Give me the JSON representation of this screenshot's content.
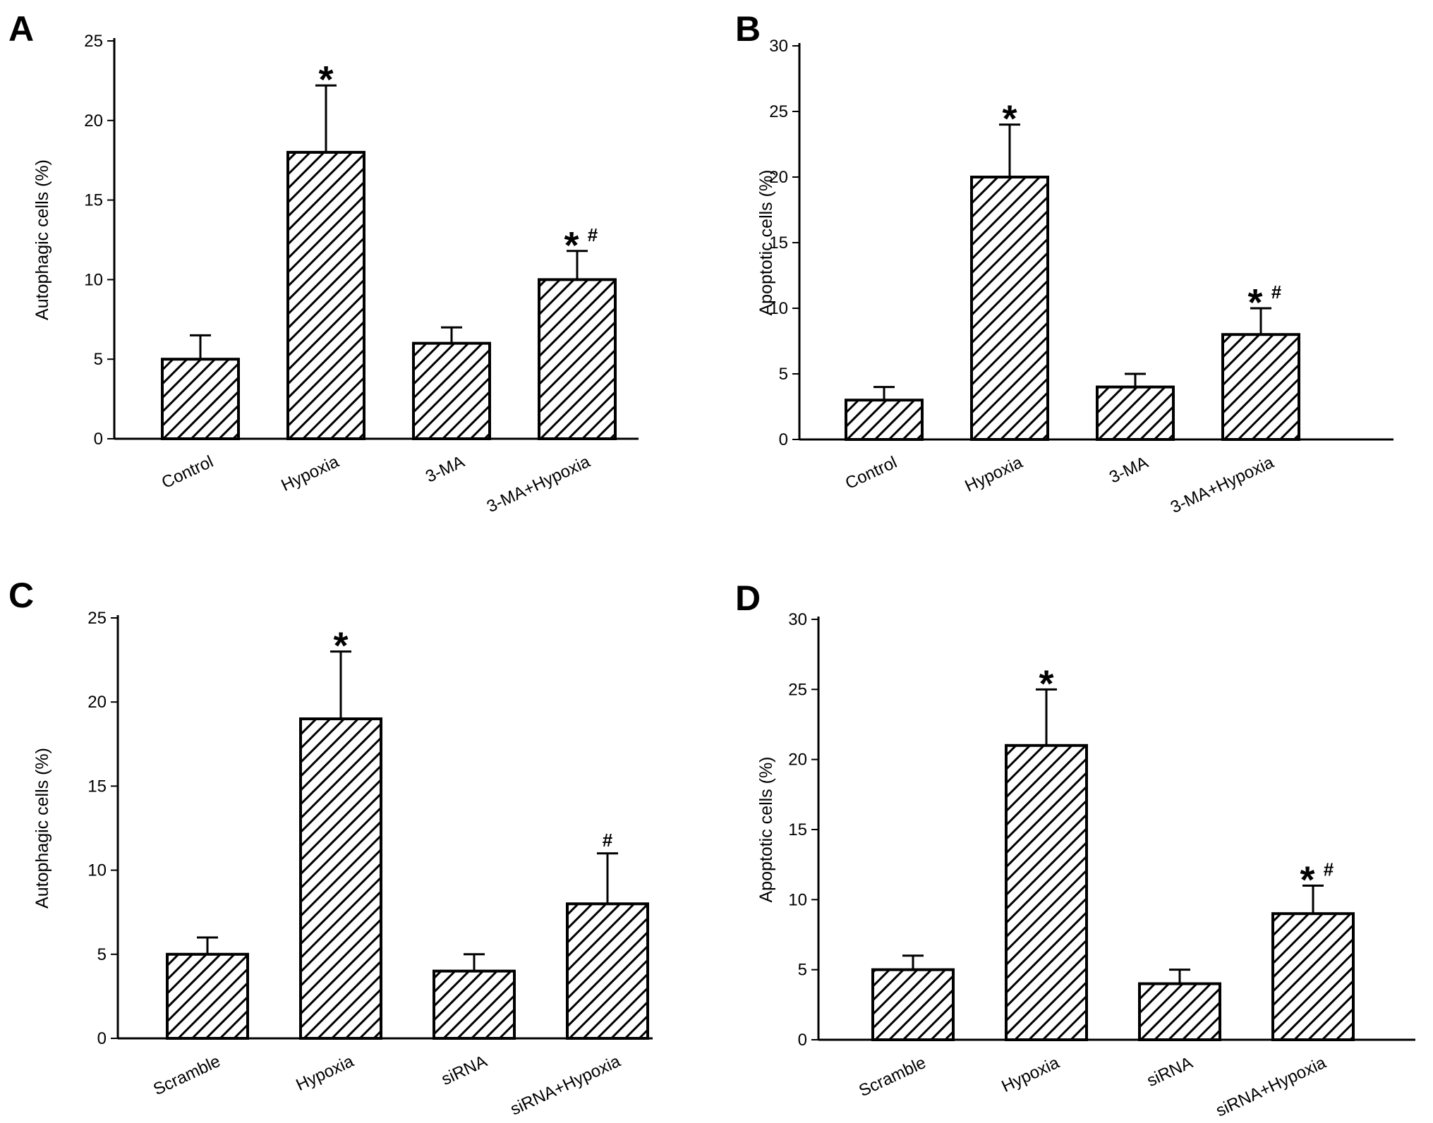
{
  "figure": {
    "background": "#ffffff",
    "ink": "#000000",
    "bar_pattern": "diagonal-hatch"
  },
  "chart_data": [
    {
      "panel": "A",
      "type": "bar",
      "categories": [
        "Control",
        "Hypoxia",
        "3-MA",
        "3-MA+Hypoxia"
      ],
      "values": [
        5,
        18,
        6,
        10
      ],
      "errors": [
        1.5,
        4.2,
        1.0,
        1.8
      ],
      "significance": [
        {
          "star": "",
          "hash": ""
        },
        {
          "star": "*",
          "hash": ""
        },
        {
          "star": "",
          "hash": ""
        },
        {
          "star": "*",
          "hash": "#"
        }
      ],
      "ylabel": "Autophagic cells (%)",
      "xlabel": "",
      "ylim": [
        0,
        25
      ],
      "yticks": [
        0,
        5,
        10,
        15,
        20,
        25
      ],
      "grid": false
    },
    {
      "panel": "B",
      "type": "bar",
      "categories": [
        "Control",
        "Hypoxia",
        "3-MA",
        "3-MA+Hypoxia"
      ],
      "values": [
        3,
        20,
        4,
        8
      ],
      "errors": [
        1.0,
        4.0,
        1.0,
        2.0
      ],
      "significance": [
        {
          "star": "",
          "hash": ""
        },
        {
          "star": "*",
          "hash": ""
        },
        {
          "star": "",
          "hash": ""
        },
        {
          "star": "*",
          "hash": "#"
        }
      ],
      "ylabel": "Apoptotic cells (%)",
      "xlabel": "",
      "ylim": [
        0,
        30
      ],
      "yticks": [
        0,
        5,
        10,
        15,
        20,
        25,
        30
      ],
      "grid": false
    },
    {
      "panel": "C",
      "type": "bar",
      "categories": [
        "Scramble",
        "Hypoxia",
        "siRNA",
        "siRNA+Hypoxia"
      ],
      "values": [
        5,
        19,
        4,
        8
      ],
      "errors": [
        1.0,
        4.0,
        1.0,
        3.0
      ],
      "significance": [
        {
          "star": "",
          "hash": ""
        },
        {
          "star": "*",
          "hash": ""
        },
        {
          "star": "",
          "hash": ""
        },
        {
          "star": "",
          "hash": "#"
        }
      ],
      "ylabel": "Autophagic cells (%)",
      "xlabel": "",
      "ylim": [
        0,
        25
      ],
      "yticks": [
        0,
        5,
        10,
        15,
        20,
        25
      ],
      "grid": false
    },
    {
      "panel": "D",
      "type": "bar",
      "categories": [
        "Scramble",
        "Hypoxia",
        "siRNA",
        "siRNA+Hypoxia"
      ],
      "values": [
        5,
        21,
        4,
        9
      ],
      "errors": [
        1.0,
        4.0,
        1.0,
        2.0
      ],
      "significance": [
        {
          "star": "",
          "hash": ""
        },
        {
          "star": "*",
          "hash": ""
        },
        {
          "star": "",
          "hash": ""
        },
        {
          "star": "*",
          "hash": "#"
        }
      ],
      "ylabel": "Apoptotic cells (%)",
      "xlabel": "",
      "ylim": [
        0,
        30
      ],
      "yticks": [
        0,
        5,
        10,
        15,
        20,
        25,
        30
      ],
      "grid": false
    }
  ]
}
